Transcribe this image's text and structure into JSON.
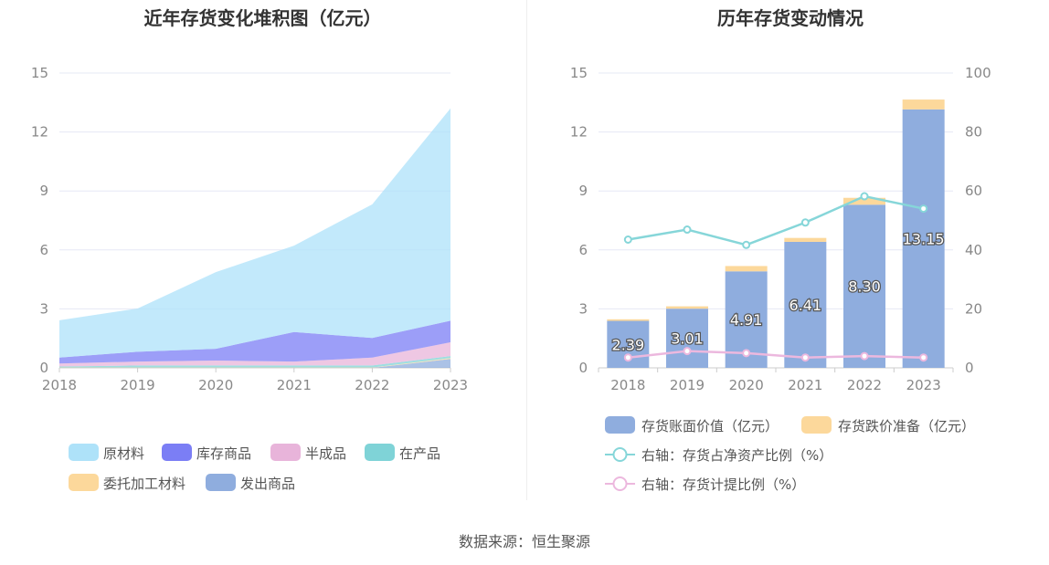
{
  "charts": {
    "left_title": "近年存货变化堆积图（亿元）",
    "right_title": "历年存货变动情况"
  },
  "source": "数据来源：恒生聚源",
  "chart_data": [
    {
      "type": "area",
      "stacked": true,
      "title": "近年存货变化堆积图（亿元）",
      "categories": [
        "2018",
        "2019",
        "2020",
        "2021",
        "2022",
        "2023"
      ],
      "y_ticks": [
        "0",
        "3",
        "6",
        "9",
        "12",
        "15"
      ],
      "ylim": [
        0,
        15
      ],
      "grid": true,
      "legend_position": "bottom",
      "series": [
        {
          "name": "原材料",
          "color": "#aee2f9",
          "values": [
            1.9,
            2.2,
            3.9,
            4.4,
            6.8,
            10.8
          ]
        },
        {
          "name": "库存商品",
          "color": "#7b7ef5",
          "values": [
            0.3,
            0.5,
            0.6,
            1.5,
            1.0,
            1.1
          ]
        },
        {
          "name": "半成品",
          "color": "#e8b4da",
          "values": [
            0.15,
            0.2,
            0.25,
            0.2,
            0.4,
            0.7
          ]
        },
        {
          "name": "在产品",
          "color": "#7fd3d7",
          "values": [
            0.05,
            0.1,
            0.1,
            0.1,
            0.1,
            0.1
          ]
        },
        {
          "name": "委托加工材料",
          "color": "#fcd89b",
          "values": [
            0.02,
            0.02,
            0.02,
            0.02,
            0.02,
            0.05
          ]
        },
        {
          "name": "发出商品",
          "color": "#8fadde",
          "values": [
            0.0,
            0.0,
            0.0,
            0.0,
            0.0,
            0.45
          ]
        }
      ]
    },
    {
      "type": "bar",
      "stacked": true,
      "title": "历年存货变动情况",
      "categories": [
        "2018",
        "2019",
        "2020",
        "2021",
        "2022",
        "2023"
      ],
      "y_ticks_left": [
        "0",
        "3",
        "6",
        "9",
        "12",
        "15"
      ],
      "y_ticks_right": [
        "0",
        "20",
        "40",
        "60",
        "80",
        "100"
      ],
      "ylim_left": [
        0,
        15
      ],
      "ylim_right": [
        0,
        100
      ],
      "grid": true,
      "legend_position": "bottom",
      "series": [
        {
          "name": "存货账面价值（亿元）",
          "color": "#8fadde",
          "axis": "left",
          "values": [
            2.39,
            3.01,
            4.91,
            6.41,
            8.3,
            13.15
          ],
          "labels": [
            "2.39",
            "3.01",
            "4.91",
            "6.41",
            "8.30",
            "13.15"
          ]
        },
        {
          "name": "存货跌价准备（亿元）",
          "color": "#fcd89b",
          "axis": "left",
          "values": [
            0.08,
            0.12,
            0.27,
            0.2,
            0.35,
            0.5
          ]
        },
        {
          "name": "右轴：存货占净资产比例（%）",
          "color": "#86d6d9",
          "axis": "right",
          "type": "line",
          "values": [
            43.5,
            46.9,
            41.7,
            49.3,
            58.2,
            54.0
          ]
        },
        {
          "name": "右轴：存货计提比例（%）",
          "color": "#ecb8de",
          "axis": "right",
          "type": "line",
          "values": [
            3.5,
            5.7,
            5.0,
            3.5,
            4.0,
            3.5
          ]
        }
      ]
    }
  ]
}
